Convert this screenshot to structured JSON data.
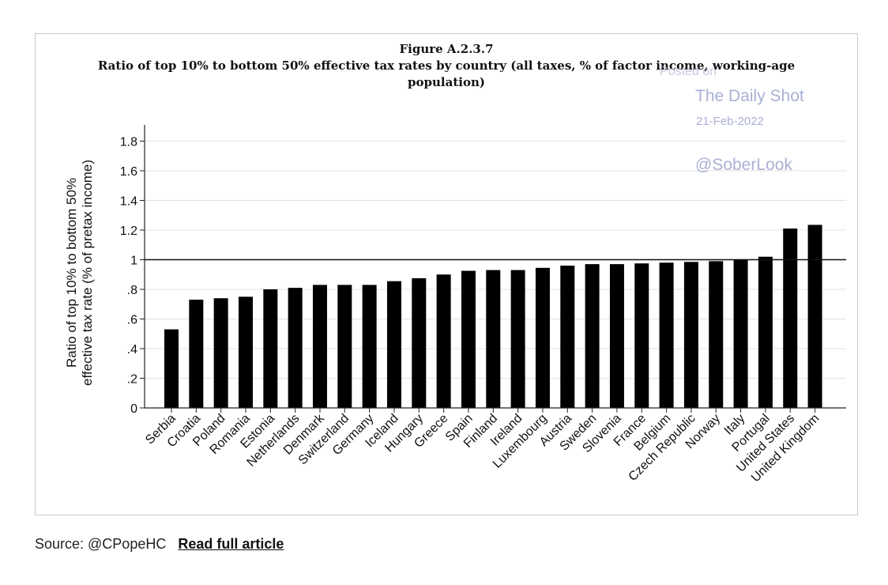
{
  "figure": {
    "label": "Figure A.2.3.7",
    "title_line1": "Ratio of top 10% to bottom 50% effective tax rates by country (all taxes, % of factor income, working-age",
    "title_line2": "population)"
  },
  "watermark": {
    "posted": "Posted on",
    "brand": "The Daily Shot",
    "date": "21-Feb-2022",
    "handle": "@SoberLook"
  },
  "chart_data": {
    "type": "bar",
    "title": "Ratio of top 10% to bottom 50% effective tax rates by country (all taxes, % of factor income, working-age population)",
    "xlabel": "",
    "ylabel_line1": "Ratio of top 10% to bottom 50%",
    "ylabel_line2": "effective tax rate (% of pretax income)",
    "ylim": [
      0,
      1.9
    ],
    "grid": true,
    "reference_line": 1,
    "bar_color": "#000000",
    "yticks": [
      {
        "value": 0,
        "label": "0"
      },
      {
        "value": 0.2,
        "label": ".2"
      },
      {
        "value": 0.4,
        "label": ".4"
      },
      {
        "value": 0.6,
        "label": ".6"
      },
      {
        "value": 0.8,
        "label": ".8"
      },
      {
        "value": 1.0,
        "label": "1"
      },
      {
        "value": 1.2,
        "label": "1.2"
      },
      {
        "value": 1.4,
        "label": "1.4"
      },
      {
        "value": 1.6,
        "label": "1.6"
      },
      {
        "value": 1.8,
        "label": "1.8"
      }
    ],
    "categories": [
      "Serbia",
      "Croatia",
      "Poland",
      "Romania",
      "Estonia",
      "Netherlands",
      "Denmark",
      "Switzerland",
      "Germany",
      "Iceland",
      "Hungary",
      "Greece",
      "Spain",
      "Finland",
      "Ireland",
      "Luxembourg",
      "Austria",
      "Sweden",
      "Slovenia",
      "France",
      "Belgium",
      "Czech Republic",
      "Norway",
      "Italy",
      "Portugal",
      "United States",
      "United Kingdom"
    ],
    "values": [
      0.53,
      0.73,
      0.74,
      0.75,
      0.8,
      0.81,
      0.83,
      0.83,
      0.83,
      0.855,
      0.875,
      0.9,
      0.925,
      0.93,
      0.93,
      0.945,
      0.96,
      0.97,
      0.97,
      0.975,
      0.98,
      0.985,
      0.99,
      1.0,
      1.02,
      1.21,
      1.235
    ]
  },
  "footer": {
    "source_label": "Source: @CPopeHC",
    "link_label": "Read full article"
  }
}
